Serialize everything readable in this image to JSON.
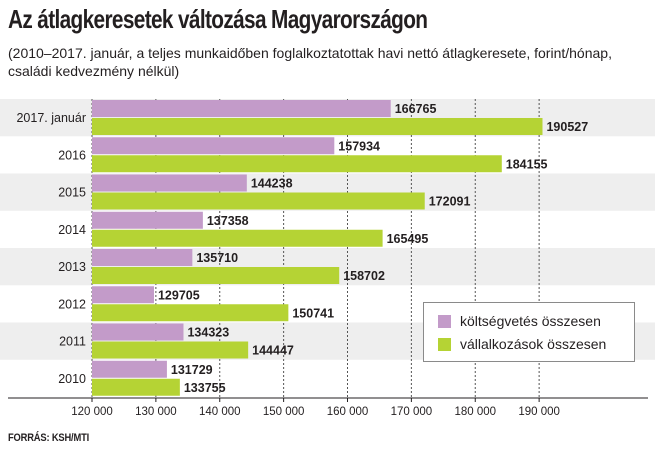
{
  "title": "Az átlagkeresetek változása Magyarországon",
  "subtitle": "(2010–2017. január, a teljes munkaidőben foglalkoztatottak havi nettó átlagkeresete, forint/hónap, családi kedvezmény nélkül)",
  "source": "FORRÁS: KSH/MTI",
  "colors": {
    "koltsegvetes": "#c39bc9",
    "vallalkozasok": "#b5d334",
    "grid": "#555555",
    "band": "#eeeeee"
  },
  "chart_data": {
    "type": "bar",
    "orientation": "horizontal",
    "categories": [
      "2017. január",
      "2016",
      "2015",
      "2014",
      "2013",
      "2012",
      "2011",
      "2010"
    ],
    "series": [
      {
        "name": "költségvetés összesen",
        "values": [
          166765,
          157934,
          144238,
          137358,
          135710,
          129705,
          134323,
          131729
        ],
        "labels": [
          "166765",
          "157934",
          "144238",
          "137358",
          "135710",
          "129705",
          "134323",
          "131729"
        ]
      },
      {
        "name": "vállalkozások összesen",
        "values": [
          190527,
          184155,
          172091,
          165495,
          158702,
          150741,
          144447,
          133755
        ],
        "labels": [
          "190527",
          "184155",
          "172091",
          "165495",
          "158702",
          "150741",
          "144447",
          "133755"
        ]
      }
    ],
    "xlim": [
      120000,
      200000
    ],
    "xticks": [
      120000,
      130000,
      140000,
      150000,
      160000,
      170000,
      180000,
      190000
    ],
    "xtick_labels": [
      "120 000",
      "130 000",
      "140 000",
      "150 000",
      "160 000",
      "170 000",
      "180 000",
      "190 000"
    ],
    "grid": "vertical dashed",
    "legend_position": "bottom-right"
  }
}
